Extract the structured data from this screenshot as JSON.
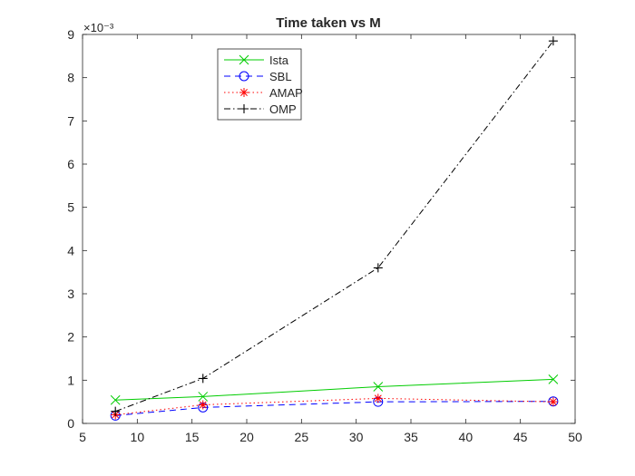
{
  "chart_data": {
    "type": "line",
    "title": "Time taken vs M",
    "xlabel": "",
    "ylabel": "",
    "y_exponent_label": "×10⁻³",
    "xlim": [
      5,
      50
    ],
    "ylim": [
      0,
      9
    ],
    "y_scale": 0.001,
    "xticks": [
      5,
      10,
      15,
      20,
      25,
      30,
      35,
      40,
      45,
      50
    ],
    "yticks": [
      0,
      1,
      2,
      3,
      4,
      5,
      6,
      7,
      8,
      9
    ],
    "grid": false,
    "legend_position": "top-left",
    "x": [
      8,
      16,
      32,
      48
    ],
    "series": [
      {
        "name": "Ista",
        "values": [
          0.54,
          0.62,
          0.85,
          1.02
        ],
        "color": "#00cc00",
        "dash": "solid",
        "marker": "x"
      },
      {
        "name": "SBL",
        "values": [
          0.18,
          0.37,
          0.5,
          0.51
        ],
        "color": "#0000ff",
        "dash": "dashed",
        "marker": "o"
      },
      {
        "name": "AMAP",
        "values": [
          0.2,
          0.43,
          0.58,
          0.5
        ],
        "color": "#ff0000",
        "dash": "dotted",
        "marker": "*"
      },
      {
        "name": "OMP",
        "values": [
          0.28,
          1.04,
          3.6,
          8.85
        ],
        "color": "#000000",
        "dash": "dashdot",
        "marker": "+"
      }
    ]
  }
}
